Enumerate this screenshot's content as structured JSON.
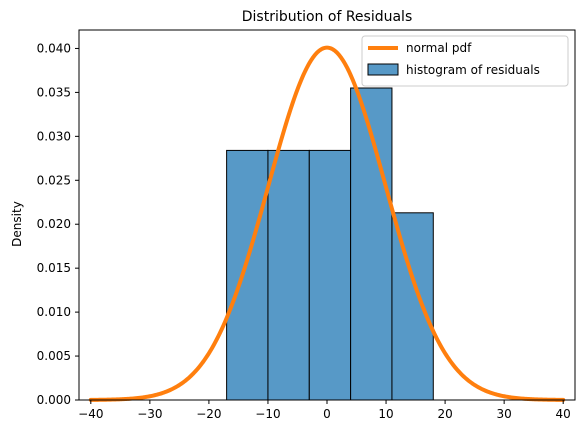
{
  "chart_data": {
    "type": "bar",
    "title": "Distribution of Residuals",
    "xlabel": "",
    "ylabel": "Density",
    "xlim": [
      -42,
      42
    ],
    "ylim": [
      0,
      0.0421
    ],
    "x_ticks": [
      -40,
      -30,
      -20,
      -10,
      0,
      10,
      20,
      30,
      40
    ],
    "y_ticks": [
      0.0,
      0.005,
      0.01,
      0.015,
      0.02,
      0.025,
      0.03,
      0.035,
      0.04
    ],
    "y_tick_labels": [
      "0.000",
      "0.005",
      "0.010",
      "0.015",
      "0.020",
      "0.025",
      "0.030",
      "0.035",
      "0.040"
    ],
    "grid": false,
    "legend_position": "top-right",
    "series": [
      {
        "name": "histogram of residuals",
        "kind": "histogram",
        "color": "#5799c7",
        "edge_color": "#000000",
        "bins": [
          {
            "x0": -17.0,
            "x1": -10.0,
            "density": 0.0284
          },
          {
            "x0": -10.0,
            "x1": -3.0,
            "density": 0.0284
          },
          {
            "x0": -3.0,
            "x1": 4.0,
            "density": 0.0284
          },
          {
            "x0": 4.0,
            "x1": 11.0,
            "density": 0.0355
          },
          {
            "x0": 11.0,
            "x1": 18.0,
            "density": 0.0213
          }
        ]
      },
      {
        "name": "normal pdf",
        "kind": "line",
        "color": "#ff7f0e",
        "mean": 0,
        "std": 9.95,
        "x_range": [
          -40,
          40
        ]
      }
    ]
  }
}
